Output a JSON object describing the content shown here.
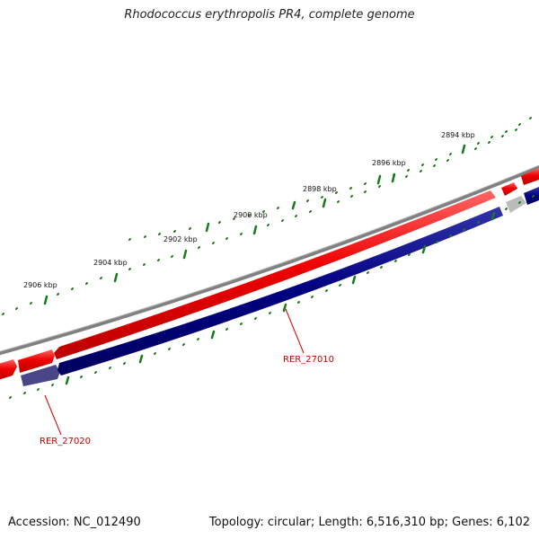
{
  "title": "Rhodococcus erythropolis PR4, complete genome",
  "footer": {
    "accession": "Accession: NC_012490",
    "summary": "Topology: circular; Length: 6,516,310 bp; Genes: 6,102"
  },
  "scale_labels": [
    "2894 kbp",
    "2896 kbp",
    "2898 kbp",
    "2900 kbp",
    "2902 kbp",
    "2904 kbp",
    "2906 kbp"
  ],
  "gene_labels": [
    "RER_27010",
    "RER_27020"
  ],
  "colors": {
    "backbone": "#808080",
    "forward_gene": "#ee0000",
    "reverse_gene": "#000080",
    "reverse_gene_light": "#4a4488",
    "pseudo_gene": "#bbbbbb",
    "tick": "#1a7a1a",
    "label": "#cc0000"
  }
}
